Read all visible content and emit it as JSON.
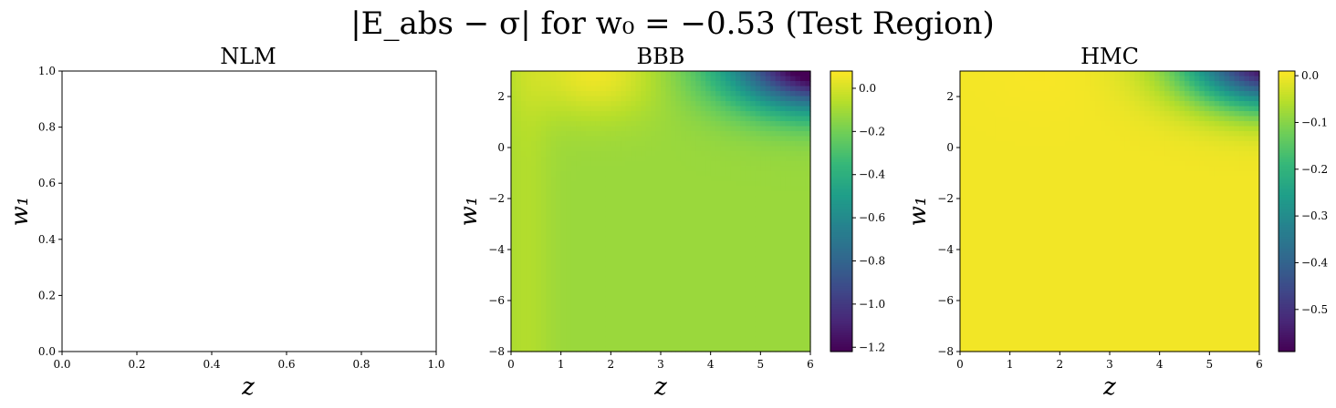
{
  "figure": {
    "title": "|E_abs − σ| for w₀ = −0.53 (Test Region)"
  },
  "colormap": {
    "name": "viridis",
    "stops": [
      "#440154",
      "#482878",
      "#3e4989",
      "#31688e",
      "#26828e",
      "#1f9e89",
      "#35b779",
      "#6ece58",
      "#b5de2b",
      "#fde725"
    ]
  },
  "chart_data": [
    {
      "type": "heatmap",
      "title": "NLM",
      "xlabel": "z",
      "ylabel": "w₁",
      "xlim": [
        0,
        1
      ],
      "ylim": [
        0,
        1
      ],
      "xticks": [
        "0.0",
        "0.2",
        "0.4",
        "0.6",
        "0.8",
        "1.0"
      ],
      "yticks": [
        "0.0",
        "0.2",
        "0.4",
        "0.6",
        "0.8",
        "1.0"
      ],
      "empty": true
    },
    {
      "type": "heatmap",
      "title": "BBB",
      "xlabel": "z",
      "ylabel": "w₁",
      "xlim": [
        0,
        6
      ],
      "ylim": [
        -8,
        3
      ],
      "xticks": [
        "0",
        "1",
        "2",
        "3",
        "4",
        "5",
        "6"
      ],
      "yticks": [
        "−8",
        "−6",
        "−4",
        "−2",
        "0",
        "2"
      ],
      "colorbar": {
        "range": [
          -1.22,
          0.08
        ],
        "ticks": [
          "0.0",
          "−0.2",
          "−0.4",
          "−0.6",
          "−0.8",
          "−1.0",
          "−1.2"
        ]
      },
      "field": {
        "base": -0.12,
        "bump": {
          "z": 1.7,
          "w1": 2.9,
          "amp": 0.17,
          "sz": 0.9,
          "sw": 1.2
        },
        "streak": {
          "z": 0.3,
          "amp": 0.05,
          "w": 0.35
        },
        "dip": {
          "z": 6.3,
          "w1": 3.3,
          "amp": -1.3,
          "sz": 1.3,
          "sw": 1.25
        }
      }
    },
    {
      "type": "heatmap",
      "title": "HMC",
      "xlabel": "z",
      "ylabel": "w₁",
      "xlim": [
        0,
        6
      ],
      "ylim": [
        -8,
        3
      ],
      "xticks": [
        "0",
        "1",
        "2",
        "3",
        "4",
        "5",
        "6"
      ],
      "yticks": [
        "−8",
        "−6",
        "−4",
        "−2",
        "0",
        "2"
      ],
      "colorbar": {
        "range": [
          -0.59,
          0.01
        ],
        "ticks": [
          "0.0",
          "−0.1",
          "−0.2",
          "−0.3",
          "−0.4",
          "−0.5"
        ]
      },
      "field": {
        "base": 0.0,
        "bump": {
          "z": 1.7,
          "w1": 2.9,
          "amp": 0.005,
          "sz": 0.9,
          "sw": 1.2
        },
        "streak": {
          "z": 0.3,
          "amp": 0.0,
          "w": 0.35
        },
        "dip": {
          "z": 6.4,
          "w1": 3.4,
          "amp": -0.62,
          "sz": 1.25,
          "sw": 1.25
        }
      }
    }
  ]
}
